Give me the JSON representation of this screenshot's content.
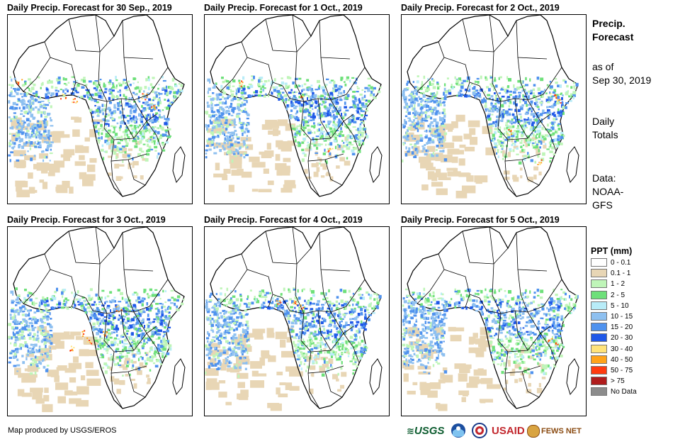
{
  "panels": [
    {
      "title": "Daily Precip. Forecast for 30 Sep., 2019",
      "seed": 11,
      "bands": [
        [
          0.3,
          0.68
        ],
        [
          0.42,
          0.62
        ],
        [
          0.52,
          0.4
        ],
        [
          0.62,
          0.22
        ]
      ],
      "hot": [
        [
          0.74,
          0.43
        ],
        [
          0.79,
          0.48
        ],
        [
          0.06,
          0.35
        ],
        [
          0.36,
          0.45
        ],
        [
          0.3,
          0.43
        ]
      ]
    },
    {
      "title": "Daily Precip. Forecast for 1 Oct., 2019",
      "seed": 23,
      "bands": [
        [
          0.3,
          0.6
        ],
        [
          0.4,
          0.55
        ],
        [
          0.52,
          0.38
        ],
        [
          0.62,
          0.2
        ]
      ],
      "hot": [
        [
          0.2,
          0.36
        ],
        [
          0.52,
          0.42
        ],
        [
          0.68,
          0.72
        ]
      ]
    },
    {
      "title": "Daily Precip. Forecast for 2 Oct., 2019",
      "seed": 37,
      "bands": [
        [
          0.3,
          0.6
        ],
        [
          0.4,
          0.62
        ],
        [
          0.52,
          0.45
        ],
        [
          0.65,
          0.25
        ]
      ],
      "hot": [
        [
          0.82,
          0.42
        ],
        [
          0.85,
          0.45
        ],
        [
          0.58,
          0.62
        ],
        [
          0.75,
          0.78
        ]
      ]
    },
    {
      "title": "Daily Precip. Forecast for 3 Oct., 2019",
      "seed": 41,
      "bands": [
        [
          0.3,
          0.55
        ],
        [
          0.42,
          0.6
        ],
        [
          0.52,
          0.42
        ],
        [
          0.62,
          0.2
        ]
      ],
      "hot": [
        [
          0.4,
          0.56
        ],
        [
          0.44,
          0.6
        ],
        [
          0.52,
          0.56
        ],
        [
          0.6,
          0.43
        ],
        [
          0.34,
          0.64
        ]
      ]
    },
    {
      "title": "Daily Precip. Forecast for 4 Oct., 2019",
      "seed": 53,
      "bands": [
        [
          0.3,
          0.55
        ],
        [
          0.42,
          0.62
        ],
        [
          0.52,
          0.46
        ],
        [
          0.62,
          0.22
        ]
      ],
      "hot": [
        [
          0.4,
          0.4
        ],
        [
          0.48,
          0.4
        ],
        [
          0.52,
          0.42
        ]
      ]
    },
    {
      "title": "Daily Precip. Forecast for 5 Oct., 2019",
      "seed": 67,
      "bands": [
        [
          0.3,
          0.7
        ],
        [
          0.42,
          0.6
        ],
        [
          0.52,
          0.45
        ],
        [
          0.62,
          0.25
        ]
      ],
      "hot": [
        [
          0.8,
          0.6
        ],
        [
          0.84,
          0.62
        ]
      ]
    }
  ],
  "side": {
    "title_line1": "Precip.",
    "title_line2": "Forecast",
    "asof_line1": "as of",
    "asof_line2": "Sep 30, 2019",
    "totals_line1": "Daily",
    "totals_line2": "Totals",
    "data_line1": "Data:",
    "data_line2": "NOAA-",
    "data_line3": "GFS"
  },
  "legend": {
    "title": "PPT (mm)",
    "items": [
      {
        "label": "0 - 0.1",
        "color": "#ffffff"
      },
      {
        "label": "0.1 - 1",
        "color": "#e8d6b5"
      },
      {
        "label": "1 - 2",
        "color": "#bff5b8"
      },
      {
        "label": "2 - 5",
        "color": "#6ee07a"
      },
      {
        "label": "5 - 10",
        "color": "#b8ecf8"
      },
      {
        "label": "10 - 15",
        "color": "#8ec0f0"
      },
      {
        "label": "15 - 20",
        "color": "#4f92ee"
      },
      {
        "label": "20 - 30",
        "color": "#1f58e8"
      },
      {
        "label": "30 - 40",
        "color": "#ffe37a"
      },
      {
        "label": "40 - 50",
        "color": "#ffa31a"
      },
      {
        "label": "50 - 75",
        "color": "#ff3b0f"
      },
      {
        "label": "> 75",
        "color": "#b01c1c"
      },
      {
        "label": "No Data",
        "color": "#8c8c8c"
      }
    ]
  },
  "credit": "Map produced by USGS/EROS",
  "logos": {
    "usgs": "USGS",
    "usaid": "USAID",
    "fews": "FEWS NET"
  }
}
